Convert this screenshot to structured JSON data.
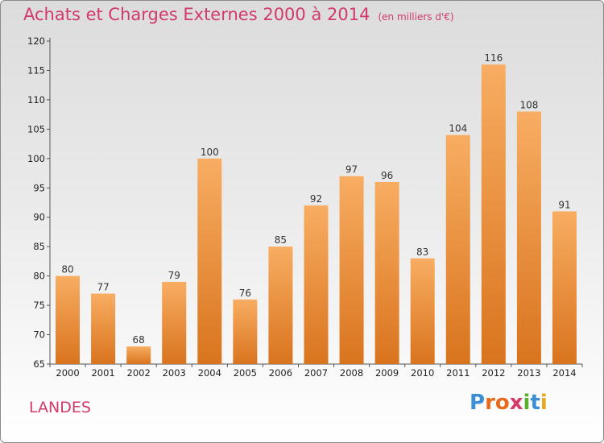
{
  "title": "Achats et Charges Externes 2000 à 2014",
  "subtitle": "(en milliers d'€)",
  "region": "LANDES",
  "logo_text": "Proxiti",
  "colors": {
    "title": "#d23a6a",
    "bar_top": "#f8ad62",
    "bar_bottom": "#d9741e",
    "logo": [
      "#3a8fd6",
      "#e86a1c",
      "#e86a1c",
      "#d23a6a",
      "#5cb030",
      "#3a8fd6",
      "#e8a81c"
    ]
  },
  "chart_data": {
    "type": "bar",
    "categories": [
      "2000",
      "2001",
      "2002",
      "2003",
      "2004",
      "2005",
      "2006",
      "2007",
      "2008",
      "2009",
      "2010",
      "2011",
      "2012",
      "2013",
      "2014"
    ],
    "values": [
      80,
      77,
      68,
      79,
      100,
      76,
      85,
      92,
      97,
      96,
      83,
      104,
      116,
      108,
      91
    ],
    "ylim": [
      65,
      120
    ],
    "yticks": [
      65,
      70,
      75,
      80,
      85,
      90,
      95,
      100,
      105,
      110,
      115,
      120
    ],
    "grid": false
  }
}
